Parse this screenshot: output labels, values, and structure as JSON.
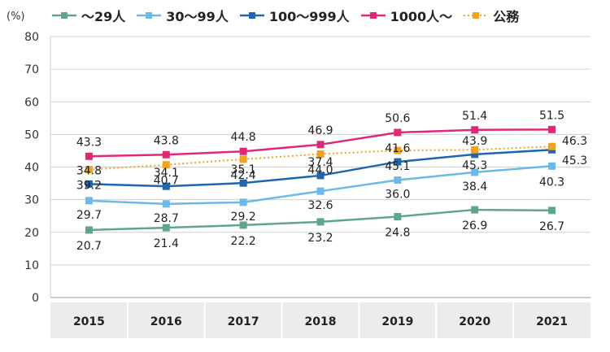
{
  "chart_data": {
    "type": "line",
    "unit_label": "(%)",
    "categories": [
      "2015",
      "2016",
      "2017",
      "2018",
      "2019",
      "2020",
      "2021"
    ],
    "ylim": [
      0,
      80
    ],
    "yticks": [
      0,
      10,
      20,
      30,
      40,
      50,
      60,
      70,
      80
    ],
    "grid": true,
    "legend": "top",
    "series": [
      {
        "name": "～29人",
        "color": "#5fa58a",
        "style": "solid",
        "values": [
          20.7,
          21.4,
          22.2,
          23.2,
          24.8,
          26.9,
          26.7
        ]
      },
      {
        "name": "30～99人",
        "color": "#6ab9e6",
        "style": "solid",
        "values": [
          29.7,
          28.7,
          29.2,
          32.6,
          36.0,
          38.4,
          40.3
        ]
      },
      {
        "name": "100～999人",
        "color": "#1f66b0",
        "style": "solid",
        "values": [
          34.8,
          34.1,
          35.1,
          37.4,
          41.6,
          43.9,
          45.3
        ]
      },
      {
        "name": "1000人～",
        "color": "#e0287a",
        "style": "solid",
        "values": [
          43.3,
          43.8,
          44.8,
          46.9,
          50.6,
          51.4,
          51.5
        ]
      },
      {
        "name": "公務",
        "color": "#efa321",
        "style": "dotted",
        "values": [
          39.2,
          40.7,
          42.4,
          44.0,
          45.1,
          45.3,
          46.3
        ]
      }
    ]
  }
}
